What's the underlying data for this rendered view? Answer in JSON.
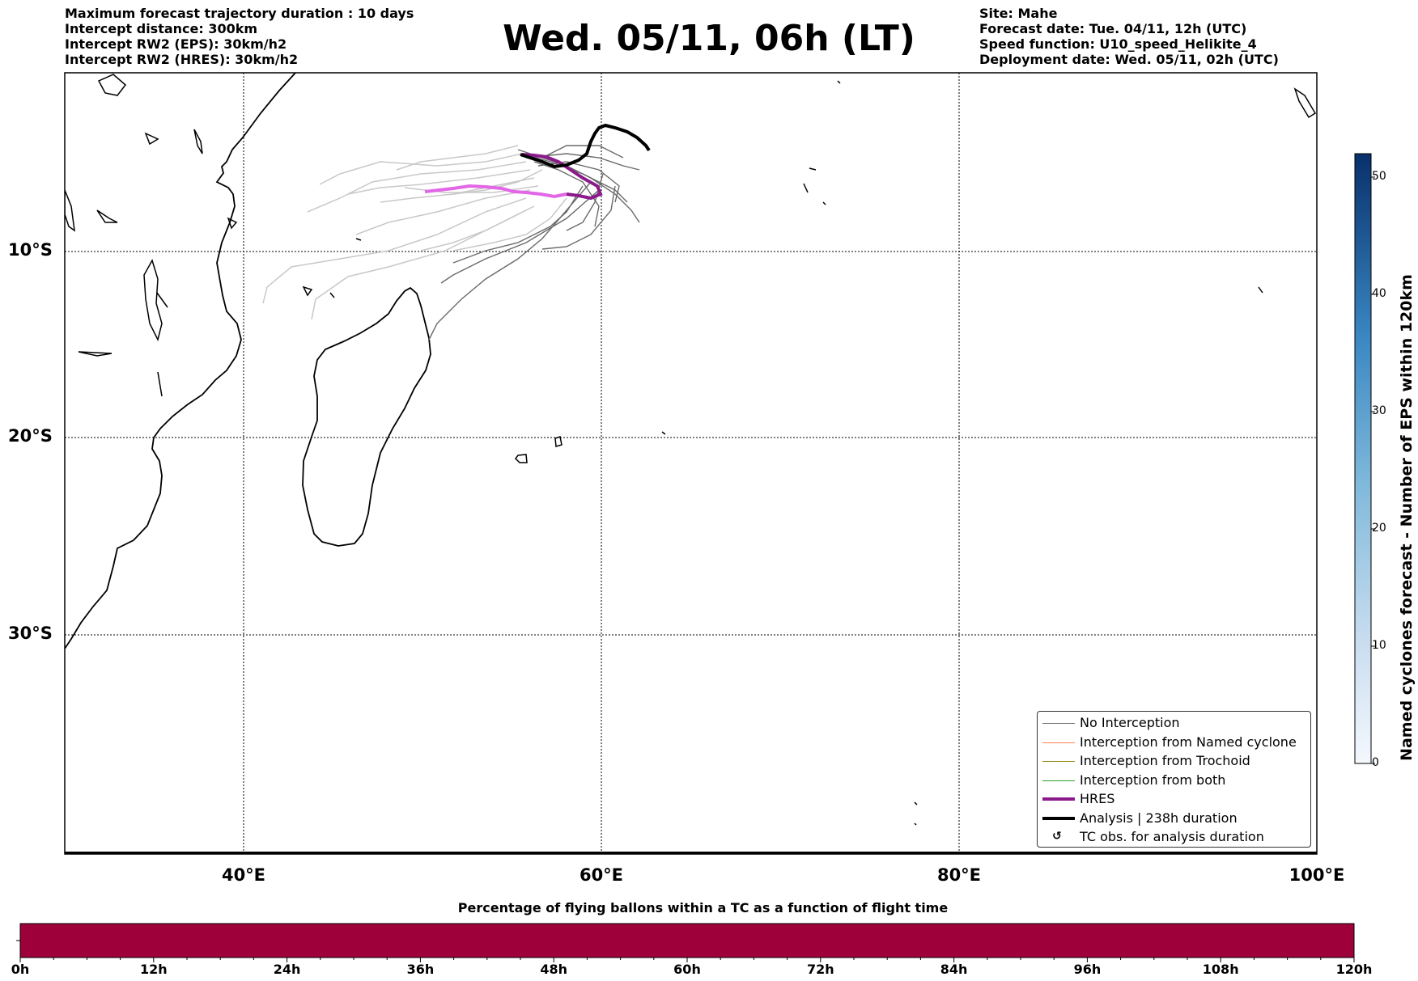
{
  "header_left": [
    "Maximum forecast trajectory duration : 10 days",
    "Intercept distance: 300km",
    "Intercept RW2 (EPS):  30km/h2",
    "Intercept RW2 (HRES): 30km/h2"
  ],
  "header_right": [
    "Site: Mahe",
    "Forecast date: Tue. 04/11, 12h (UTC)",
    "Speed function: U10_speed_Helikite_4",
    "Deployment date: Wed. 05/11, 02h (UTC)"
  ],
  "title": "Wed. 05/11, 06h (LT)",
  "map": {
    "lat_labels": [
      "10°S",
      "20°S",
      "30°S"
    ],
    "lon_labels": [
      "40°E",
      "60°E",
      "80°E",
      "100°E"
    ]
  },
  "legend": [
    {
      "label": "No Interception",
      "color": "#777777"
    },
    {
      "label": "Interception from Named cyclone",
      "color": "#ff7f50"
    },
    {
      "label": "Interception from Trochoid",
      "color": "#9a8a1a"
    },
    {
      "label": "Interception from both",
      "color": "#2ca02c"
    },
    {
      "label": "HRES",
      "color": "#8b1a8b"
    },
    {
      "label": "Analysis | 238h duration",
      "color": "#000000"
    },
    {
      "label": "TC obs. for analysis duration",
      "symbol": "↺"
    }
  ],
  "colorbar": {
    "label": "Named cyclones forecast - Number of EPS within 120km",
    "ticks": [
      "0",
      "10",
      "20",
      "30",
      "40",
      "50"
    ],
    "min": 0,
    "max": 52
  },
  "time_bar": {
    "title": "Percentage of flying ballons within a TC as a function of flight time",
    "ticks": [
      "0h",
      "12h",
      "24h",
      "36h",
      "48h",
      "60h",
      "72h",
      "84h",
      "96h",
      "108h",
      "120h"
    ],
    "color": "#9e003a"
  }
}
